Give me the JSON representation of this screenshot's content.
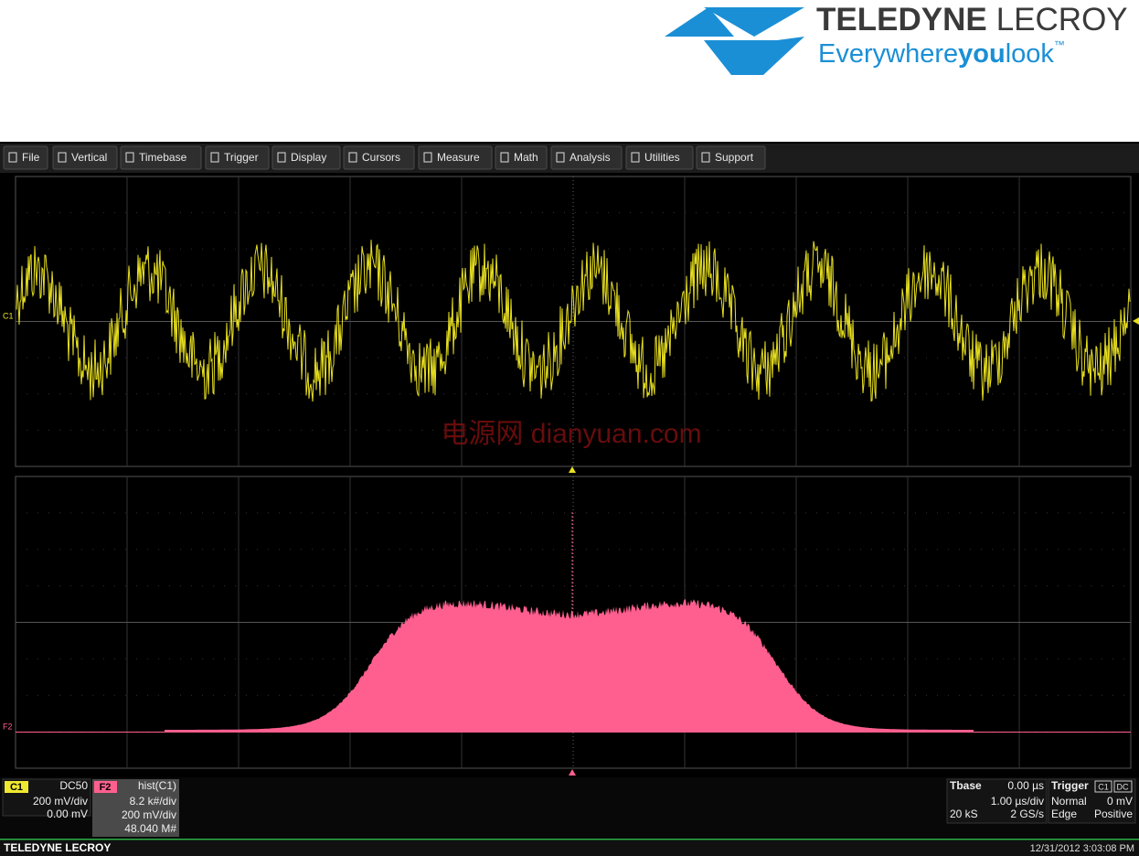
{
  "logo": {
    "brand_bold": "TELEDYNE",
    "brand_light": "LECROY",
    "tagline": [
      "Everywhere",
      "you",
      "look",
      "™"
    ]
  },
  "menu": [
    "File",
    "Vertical",
    "Timebase",
    "Trigger",
    "Display",
    "Cursors",
    "Measure",
    "Math",
    "Analysis",
    "Utilities",
    "Support"
  ],
  "grid_labels": {
    "upper": "C1",
    "lower": "F2"
  },
  "watermark": "电源网  dianyuan.com",
  "descriptors": {
    "c1": {
      "label": "C1",
      "coupling": "DC50",
      "scale": "200 mV/div",
      "offset": "0.00 mV"
    },
    "f2": {
      "label": "F2",
      "function": "hist(C1)",
      "hscale": "8.2 k#/div",
      "scale": "200 mV/div",
      "count": "48.040 M#"
    },
    "tbase": {
      "label": "Tbase",
      "delay": "0.00 µs",
      "scale": "1.00 µs/div",
      "samples": "20 kS",
      "rate": "2 GS/s"
    },
    "trigger": {
      "label": "Trigger",
      "source": "C1",
      "coupling": "DC",
      "mode": "Normal",
      "level": "0 mV",
      "type": "Edge",
      "slope": "Positive"
    }
  },
  "footer": {
    "brand": "TELEDYNE LECROY",
    "datetime": "12/31/2012 3:03:08 PM"
  }
}
